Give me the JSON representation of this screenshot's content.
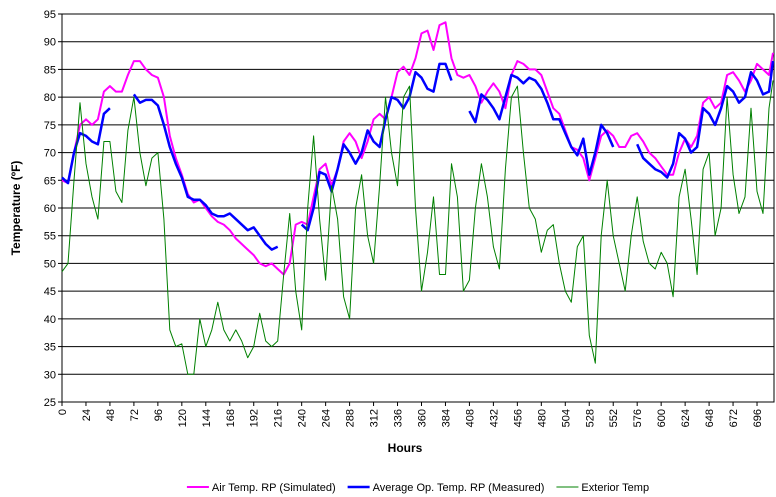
{
  "chart_data": {
    "type": "line",
    "x_label": "Hours",
    "y_label": "Temperature (ºF)",
    "xlim": [
      0,
      713
    ],
    "ylim": [
      25,
      95
    ],
    "xticks": [
      0,
      24,
      48,
      72,
      96,
      120,
      144,
      168,
      192,
      216,
      240,
      264,
      288,
      312,
      336,
      360,
      384,
      408,
      432,
      456,
      480,
      504,
      528,
      552,
      576,
      600,
      624,
      648,
      672,
      696
    ],
    "yticks": [
      25,
      30,
      35,
      40,
      45,
      50,
      55,
      60,
      65,
      70,
      75,
      80,
      85,
      90,
      95
    ],
    "grid": true,
    "legend": "bottom",
    "x": [
      0,
      6,
      12,
      18,
      24,
      30,
      36,
      42,
      48,
      54,
      60,
      66,
      72,
      78,
      84,
      90,
      96,
      102,
      108,
      114,
      120,
      126,
      132,
      138,
      144,
      150,
      156,
      162,
      168,
      174,
      180,
      186,
      192,
      198,
      204,
      210,
      216,
      222,
      228,
      234,
      240,
      246,
      252,
      258,
      264,
      270,
      276,
      282,
      288,
      294,
      300,
      306,
      312,
      318,
      324,
      330,
      336,
      342,
      348,
      354,
      360,
      366,
      372,
      378,
      384,
      390,
      396,
      402,
      408,
      414,
      420,
      426,
      432,
      438,
      444,
      450,
      456,
      462,
      468,
      474,
      480,
      486,
      492,
      498,
      504,
      510,
      516,
      522,
      528,
      534,
      540,
      546,
      552,
      558,
      564,
      570,
      576,
      582,
      588,
      594,
      600,
      606,
      612,
      618,
      624,
      630,
      636,
      642,
      648,
      654,
      660,
      666,
      672,
      678,
      684,
      690,
      696,
      702,
      708,
      712
    ],
    "series": [
      {
        "name": "Air Temp. RP (Simulated)",
        "color": "#ff00ff",
        "width": 2,
        "values": [
          65,
          64.5,
          70,
          75,
          76,
          75,
          76,
          81,
          82,
          81,
          81,
          84,
          86.5,
          86.5,
          85,
          84,
          83.5,
          80,
          73,
          69,
          66,
          62.5,
          61,
          61.5,
          60,
          58.5,
          57.5,
          57,
          56,
          54.5,
          53.5,
          52.5,
          51.5,
          50,
          49.5,
          50,
          49,
          48,
          50,
          57,
          57.5,
          57,
          62,
          67,
          68,
          64,
          67,
          72,
          73.5,
          72,
          69,
          72,
          76,
          77,
          76,
          80,
          84.5,
          85.5,
          84,
          87,
          91.5,
          92,
          88.5,
          93,
          93.5,
          87,
          84,
          83.5,
          84,
          82,
          79,
          81,
          82.5,
          81,
          78,
          84,
          86.5,
          86,
          85,
          85,
          84,
          81,
          78,
          77,
          74,
          71,
          70.5,
          69,
          65,
          69,
          73,
          74,
          73,
          71,
          71,
          73,
          73.5,
          72,
          70,
          69,
          67.5,
          66,
          66,
          70,
          72.5,
          71,
          73,
          79,
          80,
          78,
          79,
          84,
          84.5,
          83,
          81,
          83,
          86,
          85,
          84,
          88
        ]
      },
      {
        "name": "Average Op. Temp. RP  (Measured)",
        "color": "#0000ff",
        "width": 2.5,
        "values": [
          65.5,
          64.5,
          70,
          73.5,
          73,
          72,
          71.5,
          77,
          78,
          null,
          null,
          null,
          80.5,
          79,
          79.5,
          79.5,
          78.5,
          75,
          71,
          68,
          65.5,
          62,
          61.5,
          61.5,
          60.5,
          59,
          58.5,
          58.5,
          59,
          58,
          57,
          56,
          56.5,
          55,
          53.5,
          52.5,
          53,
          null,
          null,
          null,
          57,
          56,
          60,
          66.5,
          66,
          63,
          67,
          71.5,
          70,
          68,
          70,
          74,
          72,
          71,
          76,
          80,
          79.5,
          78,
          80,
          84.5,
          83.5,
          81.5,
          81,
          86,
          86,
          83,
          null,
          null,
          77.5,
          75.5,
          80.5,
          79.5,
          78,
          76,
          80,
          84,
          83.5,
          82.5,
          83.5,
          83,
          81.5,
          79,
          76,
          76,
          73.5,
          71,
          69.5,
          72.5,
          66,
          70,
          75,
          73.5,
          71,
          null,
          null,
          null,
          71.5,
          69,
          68,
          67,
          66.5,
          65.5,
          68,
          73.5,
          72.5,
          70,
          71,
          78,
          77,
          75,
          78,
          82,
          81,
          79,
          80,
          84.5,
          83,
          80.5,
          81,
          86.5
        ]
      },
      {
        "name": "Exterior Temp",
        "color": "#008000",
        "width": 1,
        "values": [
          48.5,
          50,
          65,
          79,
          68,
          62,
          58,
          72,
          72,
          63,
          61,
          74,
          80,
          70,
          64,
          69,
          70,
          58,
          38,
          35,
          35.5,
          30,
          30,
          40,
          35,
          38,
          43,
          38,
          36,
          38,
          36,
          33,
          35,
          41,
          36,
          35,
          36,
          48,
          59,
          45,
          38,
          60,
          73,
          58,
          47,
          64,
          58,
          44,
          40,
          60,
          66,
          55,
          50,
          64,
          80,
          70,
          64,
          80,
          82,
          60,
          45,
          52,
          62,
          48,
          48,
          68,
          62,
          45,
          47,
          60,
          68,
          62,
          53,
          49,
          67,
          80,
          82,
          70,
          60,
          58,
          52,
          56,
          57,
          50,
          45,
          43,
          53,
          55,
          37,
          32,
          55,
          65,
          55,
          50,
          45,
          55,
          62,
          54,
          50,
          49,
          52,
          50,
          44,
          62,
          67,
          58,
          48,
          67,
          70,
          55,
          60,
          80,
          66,
          59,
          62,
          78,
          63,
          59,
          78,
          83
        ]
      }
    ]
  }
}
